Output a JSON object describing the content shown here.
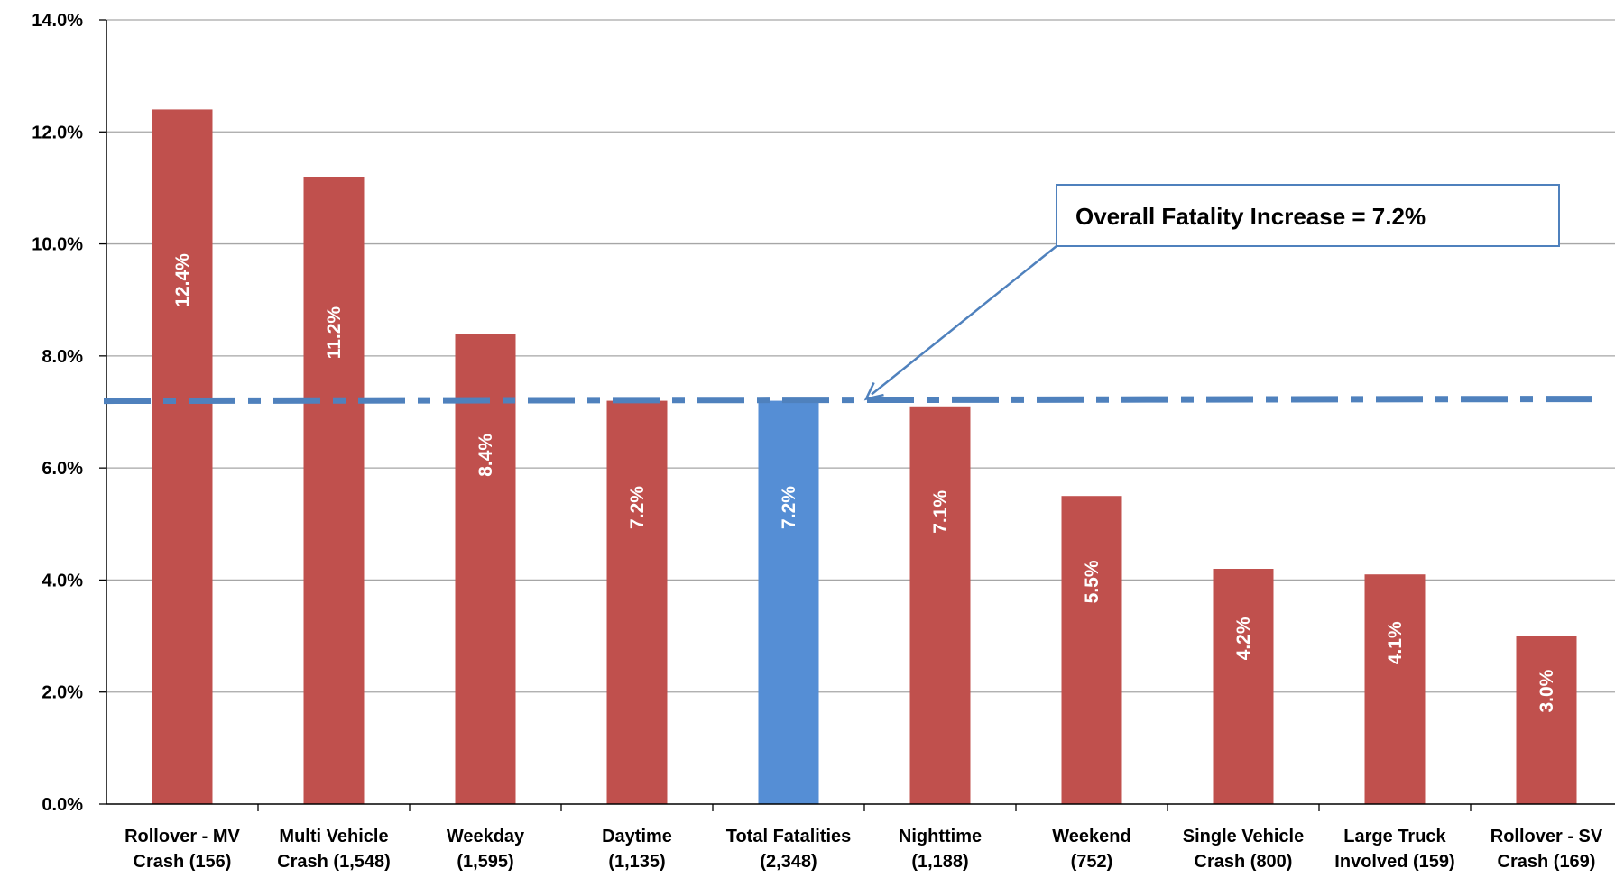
{
  "chart_data": {
    "type": "bar",
    "categories": [
      [
        "Rollover - MV",
        "Crash (156)"
      ],
      [
        "Multi Vehicle",
        "Crash (1,548)"
      ],
      [
        "Weekday",
        "(1,595)"
      ],
      [
        "Daytime",
        "(1,135)"
      ],
      [
        "Total Fatalities",
        "(2,348)"
      ],
      [
        "Nighttime",
        "(1,188)"
      ],
      [
        "Weekend",
        "(752)"
      ],
      [
        "Single Vehicle",
        "Crash (800)"
      ],
      [
        "Large Truck",
        "Involved (159)"
      ],
      [
        "Rollover - SV",
        "Crash (169)"
      ]
    ],
    "values": [
      12.4,
      11.2,
      8.4,
      7.2,
      7.2,
      7.1,
      5.5,
      4.2,
      4.1,
      3.0
    ],
    "data_labels": [
      "12.4%",
      "11.2%",
      "8.4%",
      "7.2%",
      "7.2%",
      "7.1%",
      "5.5%",
      "4.2%",
      "4.1%",
      "3.0%"
    ],
    "highlight_index": 4,
    "colors": {
      "bar": "#c0504d",
      "highlight": "#558ed5",
      "reference_line": "#4f81bd",
      "callout_border": "#4f81bd",
      "gridline": "#a6a6a6"
    },
    "ylim": [
      0,
      14
    ],
    "yticks": [
      0,
      2,
      4,
      6,
      8,
      10,
      12,
      14
    ],
    "ytick_labels": [
      "0.0%",
      "2.0%",
      "4.0%",
      "6.0%",
      "8.0%",
      "10.0%",
      "12.0%",
      "14.0%"
    ],
    "grid": true,
    "reference_line": {
      "value": 7.2,
      "style": "dash-dot"
    },
    "annotation": {
      "text": "Overall Fatality Increase = 7.2%",
      "points_to": 7.2
    },
    "title": "",
    "xlabel": "",
    "ylabel": ""
  }
}
